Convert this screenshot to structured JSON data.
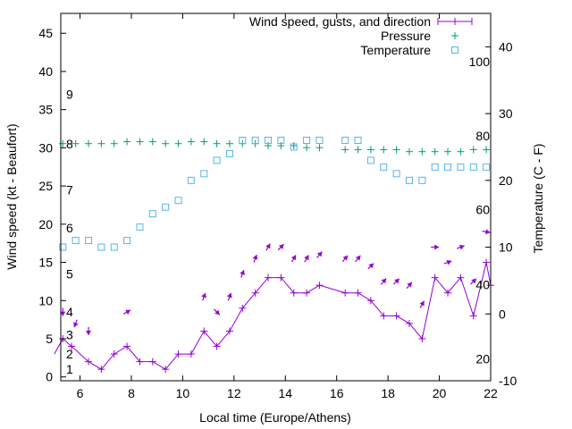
{
  "chart_data": {
    "type": "line",
    "xlabel": "Local time (Europe/Athens)",
    "ylabel": "Wind speed (kt - Beaufort)",
    "y2label": "Temperature (C - F)",
    "xlim": [
      5.25,
      22
    ],
    "ylim": [
      -0.5,
      47.6
    ],
    "y2lim": [
      -10,
      45
    ],
    "x_ticks": [
      6,
      8,
      10,
      12,
      14,
      16,
      18,
      20,
      22
    ],
    "y_ticks": [
      0,
      5,
      10,
      15,
      20,
      25,
      30,
      35,
      40,
      45
    ],
    "y2_ticks": [
      -10,
      0,
      10,
      20,
      30,
      40
    ],
    "beaufort_labels": [
      {
        "text": "1",
        "y": 1.0
      },
      {
        "text": "2",
        "y": 3.0
      },
      {
        "text": "3",
        "y": 5.5
      },
      {
        "text": "4",
        "y": 8.5
      },
      {
        "text": "5",
        "y": 13.5
      },
      {
        "text": "6",
        "y": 19.5
      },
      {
        "text": "7",
        "y": 24.5
      },
      {
        "text": "8",
        "y": 30.5
      },
      {
        "text": "9",
        "y": 37.0
      }
    ],
    "fahrenheit_labels": [
      {
        "text": "20",
        "y": -6.7
      },
      {
        "text": "40",
        "y": 4.4
      },
      {
        "text": "60",
        "y": 15.6
      },
      {
        "text": "80",
        "y": 26.7
      },
      {
        "text": "100",
        "y": 37.8
      }
    ],
    "legend": {
      "position": "top-right",
      "entries": [
        "Wind speed, gusts, and direction",
        "Pressure",
        "Temperature"
      ]
    },
    "series": [
      {
        "name": "Wind speed, gusts, and direction",
        "axis": "left",
        "color": "#9400d3",
        "marker": "plus",
        "x": [
          5.0,
          5.33,
          5.67,
          6.33,
          6.83,
          7.33,
          7.83,
          8.33,
          8.83,
          9.33,
          9.83,
          10.33,
          10.83,
          11.33,
          11.83,
          12.33,
          12.83,
          13.33,
          13.83,
          14.33,
          14.83,
          15.33,
          16.33,
          16.83,
          17.33,
          17.83,
          18.33,
          18.83,
          19.33,
          19.83,
          20.33,
          20.83,
          21.33,
          21.83,
          22.0
        ],
        "values": [
          3,
          5,
          4,
          2,
          1,
          3,
          4,
          2,
          2,
          1,
          3,
          3,
          6,
          4,
          6,
          9,
          11,
          13,
          13,
          11,
          11,
          12,
          11,
          11,
          10,
          8,
          8,
          7,
          5,
          13,
          11,
          13,
          8,
          15,
          12
        ]
      },
      {
        "name": "Pressure",
        "axis": "right",
        "color": "#009e73",
        "marker": "plus",
        "x": [
          5.33,
          5.83,
          6.33,
          6.83,
          7.33,
          7.83,
          8.33,
          8.83,
          9.33,
          9.83,
          10.33,
          10.83,
          11.33,
          11.83,
          12.33,
          12.83,
          13.33,
          13.83,
          14.33,
          14.83,
          15.33,
          16.33,
          16.83,
          17.33,
          17.83,
          18.33,
          18.83,
          19.33,
          19.83,
          20.33,
          20.83,
          21.33,
          21.83
        ],
        "values": [
          25.5,
          25.5,
          25.5,
          25.5,
          25.5,
          25.8,
          25.8,
          25.8,
          25.5,
          25.5,
          25.8,
          25.8,
          25.5,
          25.5,
          25.5,
          25.5,
          25.2,
          25.2,
          25.2,
          24.9,
          24.9,
          24.6,
          24.6,
          24.6,
          24.6,
          24.6,
          24.3,
          24.3,
          24.3,
          24.3,
          24.3,
          24.6,
          24.6
        ]
      },
      {
        "name": "Temperature",
        "axis": "right",
        "color": "#56b4e9",
        "marker": "square",
        "x": [
          5.33,
          5.83,
          6.33,
          6.83,
          7.33,
          7.83,
          8.33,
          8.83,
          9.33,
          9.83,
          10.33,
          10.83,
          11.33,
          11.83,
          12.33,
          12.83,
          13.33,
          13.83,
          14.33,
          14.83,
          15.33,
          16.33,
          16.83,
          17.33,
          17.83,
          18.33,
          18.83,
          19.33,
          19.83,
          20.33,
          20.83,
          21.33,
          21.83
        ],
        "values": [
          10,
          11,
          11,
          10,
          10,
          11,
          13,
          15,
          16,
          17,
          20,
          21,
          23,
          24,
          26,
          26,
          26,
          26,
          25,
          26,
          26,
          26,
          26,
          23,
          22,
          21,
          20,
          20,
          22,
          22,
          22,
          22,
          22
        ]
      }
    ],
    "direction_arrows": [
      {
        "x": 5.33,
        "y": 8.5,
        "angle_deg": 180
      },
      {
        "x": 5.83,
        "y": 7.0,
        "angle_deg": 200
      },
      {
        "x": 6.33,
        "y": 6.0,
        "angle_deg": 180
      },
      {
        "x": 7.83,
        "y": 8.5,
        "angle_deg": 60
      },
      {
        "x": 10.83,
        "y": 10.5,
        "angle_deg": 20
      },
      {
        "x": 11.33,
        "y": 8.5,
        "angle_deg": 135
      },
      {
        "x": 11.83,
        "y": 10.5,
        "angle_deg": 20
      },
      {
        "x": 12.33,
        "y": 13.5,
        "angle_deg": 20
      },
      {
        "x": 12.83,
        "y": 15.5,
        "angle_deg": 20
      },
      {
        "x": 13.33,
        "y": 17.0,
        "angle_deg": 30
      },
      {
        "x": 13.83,
        "y": 17.0,
        "angle_deg": 45
      },
      {
        "x": 14.33,
        "y": 15.5,
        "angle_deg": 30
      },
      {
        "x": 14.83,
        "y": 15.5,
        "angle_deg": 30
      },
      {
        "x": 15.33,
        "y": 16.0,
        "angle_deg": 40
      },
      {
        "x": 16.33,
        "y": 15.5,
        "angle_deg": 40
      },
      {
        "x": 16.83,
        "y": 15.5,
        "angle_deg": 40
      },
      {
        "x": 17.33,
        "y": 14.5,
        "angle_deg": 45
      },
      {
        "x": 17.83,
        "y": 12.5,
        "angle_deg": 40
      },
      {
        "x": 18.33,
        "y": 12.5,
        "angle_deg": 45
      },
      {
        "x": 18.83,
        "y": 12.0,
        "angle_deg": 40
      },
      {
        "x": 19.33,
        "y": 9.5,
        "angle_deg": 30
      },
      {
        "x": 19.83,
        "y": 17.0,
        "angle_deg": 90
      },
      {
        "x": 20.33,
        "y": 15.0,
        "angle_deg": 70
      },
      {
        "x": 20.83,
        "y": 17.0,
        "angle_deg": 70
      },
      {
        "x": 21.33,
        "y": 12.5,
        "angle_deg": 45
      },
      {
        "x": 21.83,
        "y": 19.0,
        "angle_deg": 100
      }
    ]
  }
}
